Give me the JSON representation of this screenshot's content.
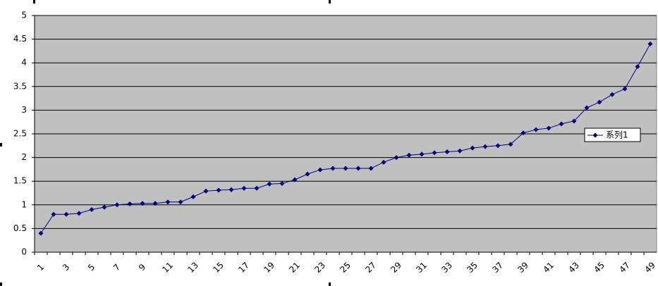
{
  "chart_data": {
    "type": "line",
    "categories": [
      "1",
      null,
      "3",
      null,
      "5",
      null,
      "7",
      null,
      "9",
      null,
      "11",
      null,
      "13",
      null,
      "15",
      null,
      "17",
      null,
      "19",
      null,
      "21",
      null,
      "23",
      null,
      "25",
      null,
      "27",
      null,
      "29",
      null,
      "31",
      null,
      "33",
      null,
      "35",
      null,
      "37",
      null,
      "39",
      null,
      "41",
      null,
      "43",
      null,
      "45",
      null,
      "47",
      null,
      "49"
    ],
    "series": [
      {
        "name": "系列1",
        "color": "#000080",
        "values": [
          0.4,
          0.8,
          0.8,
          0.82,
          0.9,
          0.95,
          1.0,
          1.02,
          1.03,
          1.03,
          1.06,
          1.06,
          1.17,
          1.29,
          1.31,
          1.32,
          1.35,
          1.35,
          1.44,
          1.45,
          1.53,
          1.65,
          1.74,
          1.77,
          1.77,
          1.77,
          1.77,
          1.9,
          2.0,
          2.05,
          2.07,
          2.1,
          2.12,
          2.14,
          2.2,
          2.23,
          2.25,
          2.28,
          2.52,
          2.59,
          2.62,
          2.71,
          2.77,
          3.05,
          3.17,
          3.33,
          3.45,
          3.92,
          4.4
        ]
      }
    ],
    "ylim": [
      0,
      5
    ],
    "yticks": [
      0,
      0.5,
      1,
      1.5,
      2,
      2.5,
      3,
      3.5,
      4,
      4.5,
      5
    ],
    "grid": true,
    "legend": "right",
    "plot_background": "#c0c0c0"
  }
}
